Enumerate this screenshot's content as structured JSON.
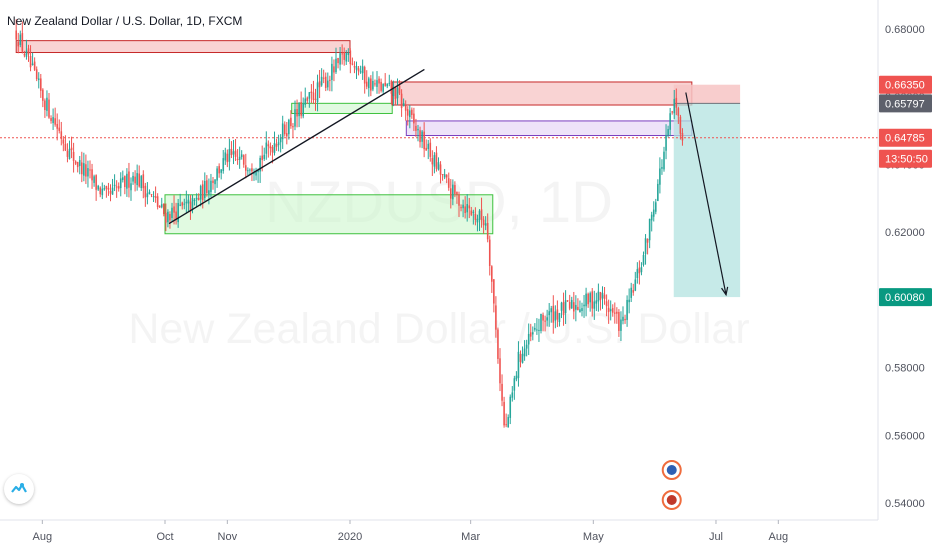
{
  "header": {
    "title": "New Zealand Dollar / U.S. Dollar, 1D, FXCM"
  },
  "watermark": {
    "symbol": "NZDUSD, 1D",
    "name": "New Zealand Dollar / U.S. Dollar"
  },
  "colors": {
    "up": "#26a69a",
    "down": "#ef5350",
    "ask_tag": "#ef5350",
    "price_tag": "#ef5350",
    "target_tag": "#089981",
    "stop_zone": "#f7c4c4",
    "target_zone": "#b3e3e0",
    "support_zone": "#c8f5c8",
    "purple_zone": "#e8d9f7"
  },
  "chart_data": {
    "type": "candlestick",
    "symbol": "NZDUSD",
    "interval": "1D",
    "exchange": "FXCM",
    "y_axis": {
      "position": "right",
      "min": 0.535,
      "max": 0.6885,
      "ticks": [
        "0.68000",
        "0.66000",
        "0.64000",
        "0.62000",
        "0.60000",
        "0.58000",
        "0.56000",
        "0.54000"
      ]
    },
    "x_axis": {
      "ticks": [
        "Aug",
        "Oct",
        "Nov",
        "2020",
        "Mar",
        "May",
        "Jul",
        "Aug"
      ]
    },
    "price_labels": [
      {
        "label": "0.66350",
        "value": 0.6635,
        "kind": "stop"
      },
      {
        "label": "0.65797",
        "value": 0.65797,
        "kind": "entry"
      },
      {
        "label": "0.64785",
        "value": 0.64785,
        "kind": "last"
      },
      {
        "label": "13:50:50",
        "kind": "countdown"
      },
      {
        "label": "0.60080",
        "value": 0.6008,
        "kind": "target"
      }
    ],
    "series": [
      {
        "date": "2019-07-19",
        "value": 0.679
      },
      {
        "date": "2019-08-01",
        "value": 0.66
      },
      {
        "date": "2019-08-15",
        "value": 0.643
      },
      {
        "date": "2019-09-02",
        "value": 0.63
      },
      {
        "date": "2019-09-16",
        "value": 0.637
      },
      {
        "date": "2019-10-01",
        "value": 0.625
      },
      {
        "date": "2019-10-15",
        "value": 0.628
      },
      {
        "date": "2019-11-01",
        "value": 0.642
      },
      {
        "date": "2019-11-15",
        "value": 0.64
      },
      {
        "date": "2019-12-02",
        "value": 0.652
      },
      {
        "date": "2019-12-16",
        "value": 0.662
      },
      {
        "date": "2019-12-31",
        "value": 0.673
      },
      {
        "date": "2020-01-10",
        "value": 0.664
      },
      {
        "date": "2020-01-24",
        "value": 0.661
      },
      {
        "date": "2020-02-05",
        "value": 0.648
      },
      {
        "date": "2020-02-20",
        "value": 0.632
      },
      {
        "date": "2020-03-03",
        "value": 0.625
      },
      {
        "date": "2020-03-09",
        "value": 0.623
      },
      {
        "date": "2020-03-18",
        "value": 0.56
      },
      {
        "date": "2020-03-25",
        "value": 0.583
      },
      {
        "date": "2020-04-07",
        "value": 0.595
      },
      {
        "date": "2020-04-21",
        "value": 0.598
      },
      {
        "date": "2020-05-05",
        "value": 0.601
      },
      {
        "date": "2020-05-15",
        "value": 0.592
      },
      {
        "date": "2020-05-26",
        "value": 0.613
      },
      {
        "date": "2020-06-05",
        "value": 0.643
      },
      {
        "date": "2020-06-10",
        "value": 0.658
      },
      {
        "date": "2020-06-15",
        "value": 0.648
      }
    ],
    "annotations": {
      "resistance_zones": [
        {
          "from": "2019-07-19",
          "to": "2020-01-01",
          "top": 0.6765,
          "bottom": 0.673
        },
        {
          "from": "2020-01-22",
          "to": "2020-06-19",
          "top": 0.6643,
          "bottom": 0.6575
        }
      ],
      "support_zones": [
        {
          "from": "2019-10-01",
          "to": "2020-03-12",
          "top": 0.631,
          "bottom": 0.6195
        },
        {
          "from": "2019-12-03",
          "to": "2020-01-22",
          "top": 0.658,
          "bottom": 0.655
        }
      ],
      "purple_zone": {
        "from": "2020-01-29",
        "to": "2020-06-19",
        "top": 0.6528,
        "bottom": 0.6485
      },
      "trendline": {
        "from": {
          "date": "2019-10-03",
          "value": 0.6225
        },
        "to": {
          "date": "2020-02-07",
          "value": 0.668
        }
      },
      "short_position": {
        "from": "2020-06-10",
        "to": "2020-07-13",
        "stop": 0.6635,
        "entry": 0.65797,
        "target": 0.6008
      },
      "projection_arrow": {
        "from": {
          "date": "2020-06-16",
          "value": 0.6612
        },
        "to": {
          "date": "2020-07-06",
          "value": 0.6015
        }
      }
    }
  }
}
